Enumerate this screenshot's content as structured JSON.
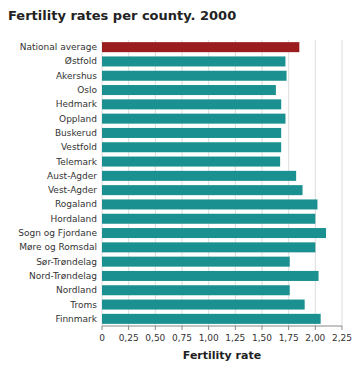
{
  "chart_data": {
    "type": "bar",
    "orientation": "horizontal",
    "title": "Fertility rates per county. 2000",
    "categories": [
      "National average",
      "Østfold",
      "Akershus",
      "Oslo",
      "Hedmark",
      "Oppland",
      "Buskerud",
      "Vestfold",
      "Telemark",
      "Aust-Agder",
      "Vest-Agder",
      "Rogaland",
      "Hordaland",
      "Sogn og Fjordane",
      "Møre og Romsdal",
      "Sør-Trøndelag",
      "Nord-Trøndelag",
      "Nordland",
      "Troms",
      "Finnmark"
    ],
    "values": [
      1.85,
      1.72,
      1.73,
      1.63,
      1.68,
      1.72,
      1.68,
      1.68,
      1.67,
      1.82,
      1.88,
      2.02,
      2.0,
      2.1,
      2.0,
      1.76,
      2.03,
      1.76,
      1.9,
      2.05
    ],
    "colors": [
      "#9b1c1c",
      "#1a9090",
      "#1a9090",
      "#1a9090",
      "#1a9090",
      "#1a9090",
      "#1a9090",
      "#1a9090",
      "#1a9090",
      "#1a9090",
      "#1a9090",
      "#1a9090",
      "#1a9090",
      "#1a9090",
      "#1a9090",
      "#1a9090",
      "#1a9090",
      "#1a9090",
      "#1a9090",
      "#1a9090"
    ],
    "xlabel": "Fertility rate",
    "xlim": [
      0,
      2.25
    ],
    "xticks": [
      0,
      {
        "value": 0.25,
        "label": "0,25"
      },
      {
        "value": 0.5,
        "label": "0,50"
      },
      {
        "value": 0.75,
        "label": "0,75"
      },
      {
        "value": 1.0,
        "label": "1,00"
      },
      {
        "value": 1.25,
        "label": "1,25"
      },
      {
        "value": 1.5,
        "label": "1,50"
      },
      {
        "value": 1.75,
        "label": "1,75"
      },
      {
        "value": 2.0,
        "label": "2,00"
      },
      {
        "value": 2.25,
        "label": "2,25"
      }
    ],
    "grid": true
  }
}
